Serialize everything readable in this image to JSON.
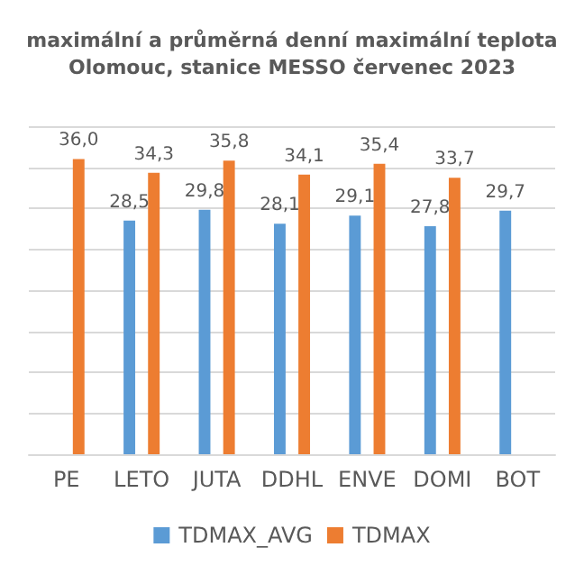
{
  "chart_data": {
    "type": "bar",
    "title": "maximální a průměrná denní maximální teplota",
    "subtitle": "Olomouc, stanice MESSO červenec 2023",
    "categories": [
      "PE",
      "LETO",
      "JUTA",
      "DDHL",
      "ENVE",
      "DOMI",
      "BOT"
    ],
    "series": [
      {
        "name": "TDMAX_AVG",
        "color": "#5b9bd5",
        "values": [
          null,
          28.5,
          29.8,
          28.1,
          29.1,
          27.8,
          29.7
        ],
        "value_labels": [
          null,
          "28,5",
          "29,8",
          "28,1",
          "29,1",
          "27,8",
          "29,7"
        ]
      },
      {
        "name": "TDMAX",
        "color": "#ed7d31",
        "values": [
          36.0,
          34.3,
          35.8,
          34.1,
          35.4,
          33.7,
          null
        ],
        "value_labels": [
          "36,0",
          "34,3",
          "35,8",
          "34,1",
          "35,4",
          "33,7",
          null
        ]
      }
    ],
    "ylim": [
      0,
      40
    ],
    "yticks": [
      {
        "value": 0,
        "label": null
      },
      {
        "value": 5,
        "label": null
      },
      {
        "value": 10,
        "label": null
      },
      {
        "value": 15,
        "label": null
      },
      {
        "value": 20,
        "label": null
      },
      {
        "value": 25,
        "label": null
      },
      {
        "value": 30,
        "label": null
      },
      {
        "value": 35,
        "label": null
      },
      {
        "value": 40,
        "label": null
      }
    ],
    "tick_labels": "x",
    "grid": "y",
    "legend": "bottom"
  }
}
